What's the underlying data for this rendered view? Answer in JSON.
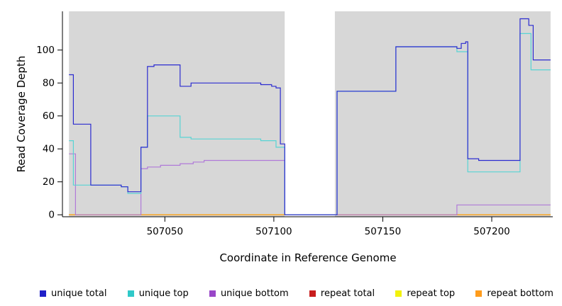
{
  "chart_data": {
    "type": "line",
    "subtype": "step-after",
    "title": "",
    "xlabel": "Coordinate in Reference Genome",
    "ylabel": "Read Coverage Depth",
    "xlim": [
      507003,
      507228
    ],
    "ylim": [
      -1.2,
      123.5
    ],
    "data_xrange": [
      507006,
      507227
    ],
    "x_ticks": [
      507050,
      507100,
      507150,
      507200
    ],
    "y_ticks": [
      0,
      20,
      40,
      60,
      80,
      100
    ],
    "grid": false,
    "legend_position": "bottom",
    "shading_color": "#d7d7d7",
    "shaded_regions": [
      [
        507006,
        507105
      ],
      [
        507128,
        507227
      ]
    ],
    "series": [
      {
        "name": "repeat total",
        "color": "#cd2222",
        "steps": [
          [
            507006,
            0
          ]
        ]
      },
      {
        "name": "repeat top",
        "color": "#f2f20c",
        "steps": [
          [
            507006,
            0
          ]
        ]
      },
      {
        "name": "repeat bottom",
        "color": "#ff9c1c",
        "steps": [
          [
            507006,
            0
          ]
        ]
      },
      {
        "name": "unique bottom",
        "color": "#b07ad8",
        "steps": [
          [
            507006,
            37
          ],
          [
            507009,
            0
          ],
          [
            507039,
            28
          ],
          [
            507042,
            29
          ],
          [
            507048,
            30
          ],
          [
            507057,
            31
          ],
          [
            507063,
            32
          ],
          [
            507068,
            33
          ],
          [
            507105,
            0
          ],
          [
            507184,
            6
          ]
        ]
      },
      {
        "name": "unique top",
        "color": "#58d4d4",
        "steps": [
          [
            507006,
            45
          ],
          [
            507008,
            18
          ],
          [
            507030,
            17
          ],
          [
            507033,
            13
          ],
          [
            507039,
            41
          ],
          [
            507042,
            60
          ],
          [
            507057,
            47
          ],
          [
            507062,
            46
          ],
          [
            507094,
            45
          ],
          [
            507101,
            41
          ],
          [
            507105,
            0
          ],
          [
            507129,
            75
          ],
          [
            507156,
            102
          ],
          [
            507184,
            99
          ],
          [
            507189,
            26
          ],
          [
            507213,
            110
          ],
          [
            507218,
            88
          ]
        ]
      },
      {
        "name": "unique total",
        "color": "#2b2bd0",
        "steps": [
          [
            507006,
            85
          ],
          [
            507008,
            55
          ],
          [
            507016,
            18
          ],
          [
            507030,
            17
          ],
          [
            507033,
            14
          ],
          [
            507039,
            41
          ],
          [
            507042,
            90
          ],
          [
            507045,
            91
          ],
          [
            507057,
            78
          ],
          [
            507062,
            80
          ],
          [
            507094,
            79
          ],
          [
            507099,
            78
          ],
          [
            507101,
            77
          ],
          [
            507103,
            43
          ],
          [
            507105,
            0
          ],
          [
            507129,
            75
          ],
          [
            507156,
            102
          ],
          [
            507184,
            101
          ],
          [
            507186,
            104
          ],
          [
            507188,
            105
          ],
          [
            507189,
            34
          ],
          [
            507194,
            33
          ],
          [
            507213,
            119
          ],
          [
            507217,
            115
          ],
          [
            507219,
            94
          ]
        ]
      }
    ],
    "legend": [
      {
        "label": "unique total",
        "color": "#1f1fc8"
      },
      {
        "label": "unique top",
        "color": "#2fc9c9"
      },
      {
        "label": "unique bottom",
        "color": "#9946c8"
      },
      {
        "label": "repeat total",
        "color": "#c81d1d"
      },
      {
        "label": "repeat top",
        "color": "#f2f20c"
      },
      {
        "label": "repeat bottom",
        "color": "#ff9c1c"
      }
    ]
  }
}
